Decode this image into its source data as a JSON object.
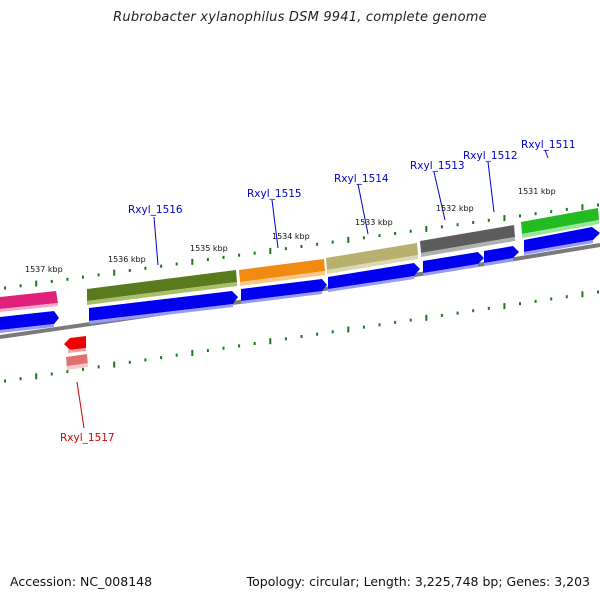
{
  "title": "Rubrobacter xylanophilus DSM 9941, complete genome",
  "footer": {
    "accession": "Accession: NC_008148",
    "topology": "Topology: circular; Length: 3,225,748 bp; Genes: 3,203"
  },
  "colors": {
    "cds_blue": "#0000ee",
    "label_blue": "#0000cc",
    "label_red": "#cc0000",
    "tick_green": "#1a7a1a",
    "backbone_gray": "#7a7a7a",
    "hit_red": "#ee0000"
  },
  "ruler_labels": [
    "1537 kbp",
    "1536 kbp",
    "1535 kbp",
    "1534 kbp",
    "1533 kbp",
    "1532 kbp",
    "1531 kbp"
  ],
  "genes": [
    {
      "name": "Rxyl_1516",
      "strand": "+",
      "color": "#5a7a1e"
    },
    {
      "name": "Rxyl_1515",
      "strand": "+",
      "color": "#f08a10"
    },
    {
      "name": "Rxyl_1514",
      "strand": "+",
      "color": "#b8b070"
    },
    {
      "name": "Rxyl_1513",
      "strand": "+",
      "color": "#5c5c5c"
    },
    {
      "name": "Rxyl_1512",
      "strand": "+",
      "color": "#5c5c5c"
    },
    {
      "name": "Rxyl_1511",
      "strand": "+",
      "color": "#22bb22"
    },
    {
      "name": "Rxyl_1517",
      "strand": "-",
      "color": "#ee0000"
    }
  ]
}
